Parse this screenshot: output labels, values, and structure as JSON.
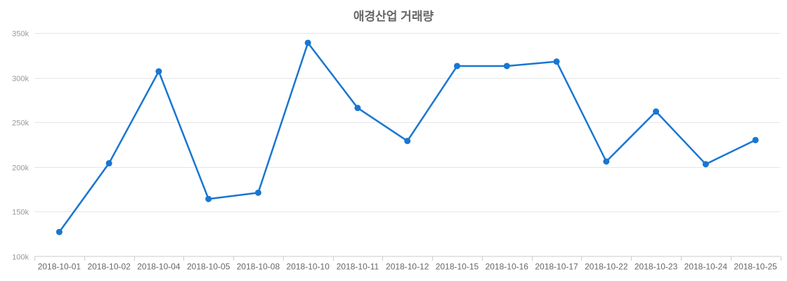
{
  "chart_data": {
    "type": "line",
    "title": "애경산업 거래량",
    "xlabel": "",
    "ylabel": "",
    "legend": "none",
    "grid": true,
    "categories": [
      "2018-10-01",
      "2018-10-02",
      "2018-10-04",
      "2018-10-05",
      "2018-10-08",
      "2018-10-10",
      "2018-10-11",
      "2018-10-12",
      "2018-10-15",
      "2018-10-16",
      "2018-10-17",
      "2018-10-22",
      "2018-10-23",
      "2018-10-24",
      "2018-10-25"
    ],
    "values": [
      127000,
      204000,
      307000,
      164000,
      171000,
      339000,
      266000,
      229000,
      313000,
      313000,
      318000,
      206000,
      262000,
      203000,
      230000
    ],
    "ylim": [
      100000,
      350000
    ],
    "y_ticks": [
      100000,
      150000,
      200000,
      250000,
      300000,
      350000
    ],
    "y_tick_labels": [
      "100k",
      "150k",
      "200k",
      "250k",
      "300k",
      "350k"
    ],
    "colors": {
      "line": "#1976d2",
      "marker": "#1976d2",
      "gridline": "#e6e6e6",
      "axis_line": "#cccccc",
      "tick_mark": "#cccccc",
      "y_tick_label": "#999999",
      "x_tick_label": "#666666",
      "title": "#666666",
      "background": "#ffffff"
    }
  }
}
